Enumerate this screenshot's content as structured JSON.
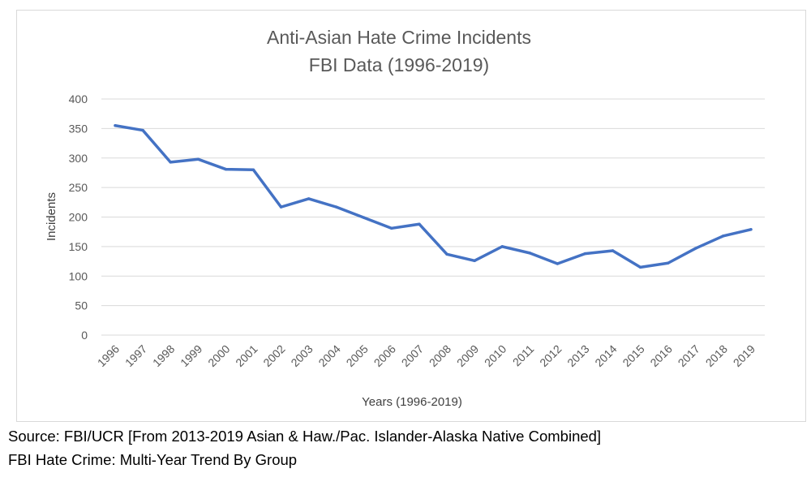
{
  "chart_data": {
    "type": "line",
    "title": [
      "Anti-Asian Hate Crime Incidents",
      "FBI Data (1996-2019)"
    ],
    "xlabel": "Years (1996-2019)",
    "ylabel": "Incidents",
    "ylim": [
      0,
      400
    ],
    "yticks": [
      0,
      50,
      100,
      150,
      200,
      250,
      300,
      350,
      400
    ],
    "grid": true,
    "legend": "none",
    "categories": [
      "1996",
      "1997",
      "1998",
      "1999",
      "2000",
      "2001",
      "2002",
      "2003",
      "2004",
      "2005",
      "2006",
      "2007",
      "2008",
      "2009",
      "2010",
      "2011",
      "2012",
      "2013",
      "2014",
      "2015",
      "2016",
      "2017",
      "2018",
      "2019"
    ],
    "series": [
      {
        "color": "#4472c4",
        "values": [
          355,
          347,
          293,
          298,
          281,
          280,
          217,
          231,
          217,
          199,
          181,
          188,
          137,
          126,
          150,
          139,
          121,
          138,
          143,
          115,
          122,
          147,
          168,
          179
        ]
      }
    ]
  },
  "footnotes": {
    "source": "Source: FBI/UCR [From 2013-2019 Asian & Haw./Pac. Islander-Alaska Native Combined]",
    "trend": "FBI Hate Crime: Multi-Year Trend By Group"
  }
}
